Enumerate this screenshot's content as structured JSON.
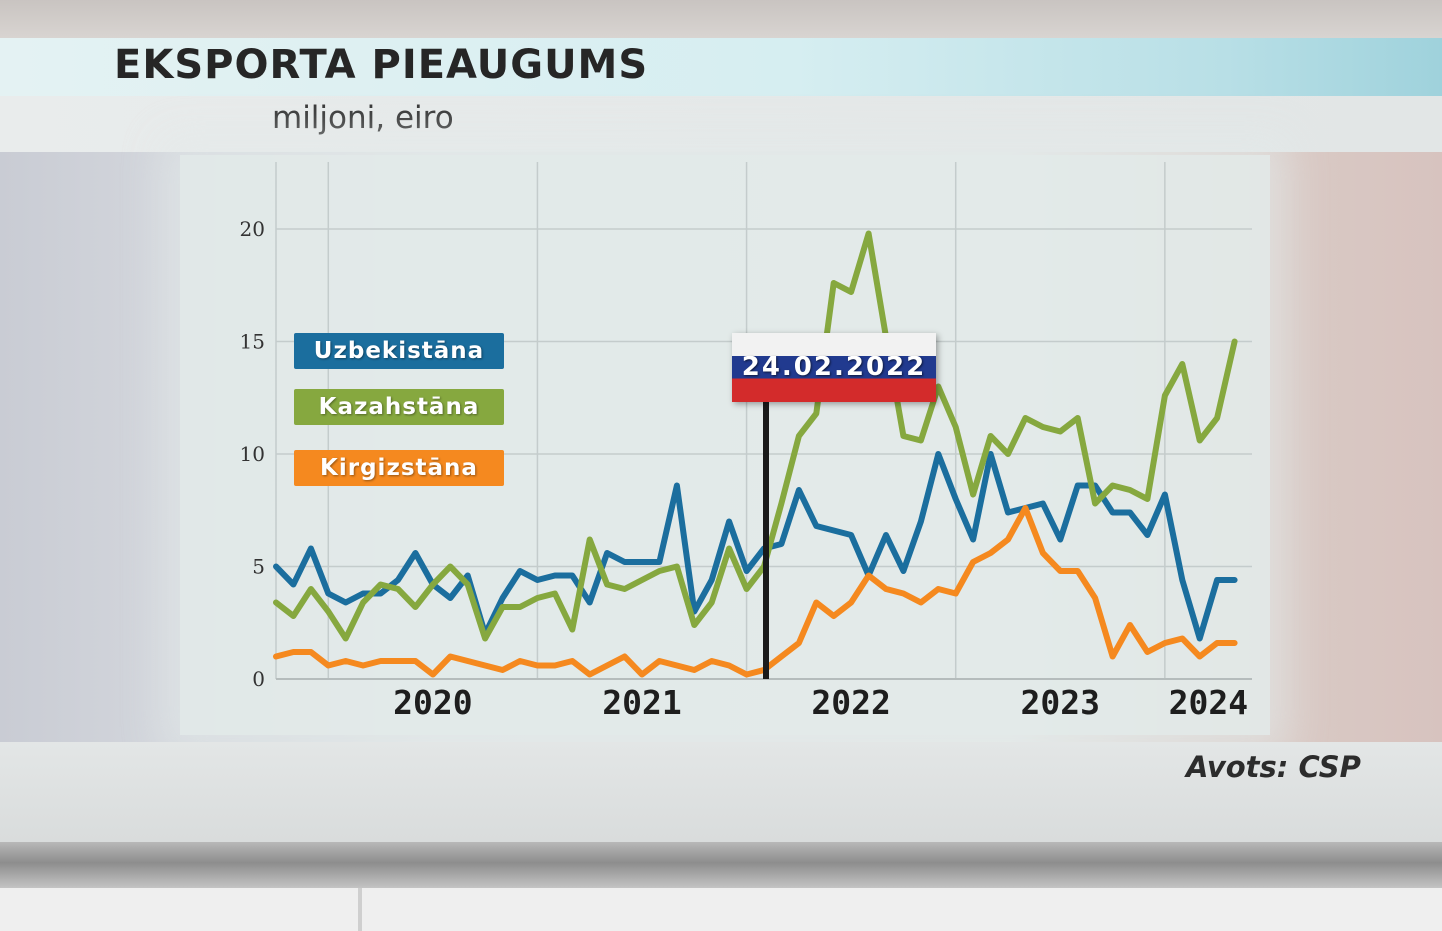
{
  "header": {
    "title": "EKSPORTA PIEAUGUMS",
    "subtitle": "miljoni, eiro"
  },
  "source": "Avots: CSP",
  "marker": {
    "label": "24.02.2022"
  },
  "colors": {
    "uzbekistan": "#1b6e9e",
    "kazakhstan": "#86a83f",
    "kyrgyzstan": "#f5891f"
  },
  "legend": [
    {
      "label": "Uzbekistāna",
      "color": "#1b6e9e"
    },
    {
      "label": "Kazahstāna",
      "color": "#86a83f"
    },
    {
      "label": "Kirgizstāna",
      "color": "#f5891f"
    }
  ],
  "chart_data": {
    "type": "line",
    "title": "EKSPORTA PIEAUGUMS",
    "ylabel": "miljoni, eiro",
    "ylim": [
      0,
      20
    ],
    "y_ticks": [
      "0",
      "5",
      "10",
      "15",
      "20"
    ],
    "x_tick_labels": [
      "2020",
      "2021",
      "2022",
      "2023",
      "2024"
    ],
    "grid": true,
    "legend_position": "left",
    "x_start": "2019-10",
    "x_end": "2024-06",
    "marker_date": "2022-02",
    "series": [
      {
        "name": "Uzbekistāna",
        "color": "#1b6e9e",
        "values": [
          5.0,
          4.2,
          5.8,
          3.8,
          3.4,
          3.8,
          3.8,
          4.4,
          5.6,
          4.2,
          3.6,
          4.6,
          2.0,
          3.6,
          4.8,
          4.4,
          4.6,
          4.6,
          3.4,
          5.6,
          5.2,
          5.2,
          5.2,
          8.6,
          3.0,
          4.4,
          7.0,
          4.8,
          5.8,
          6.0,
          8.4,
          6.8,
          6.6,
          6.4,
          4.6,
          6.4,
          4.8,
          7.0,
          10.0,
          8.0,
          6.2,
          10.0,
          7.4,
          7.6,
          7.8,
          6.2,
          8.6,
          8.6,
          7.4,
          7.4,
          6.4,
          8.2,
          4.4,
          1.8,
          4.4,
          4.4
        ]
      },
      {
        "name": "Kazahstāna",
        "color": "#86a83f",
        "values": [
          3.4,
          2.8,
          4.0,
          3.0,
          1.8,
          3.4,
          4.2,
          4.0,
          3.2,
          4.2,
          5.0,
          4.2,
          1.8,
          3.2,
          3.2,
          3.6,
          3.8,
          2.2,
          6.2,
          4.2,
          4.0,
          4.4,
          4.8,
          5.0,
          2.4,
          3.4,
          5.8,
          4.0,
          5.0,
          7.8,
          10.8,
          11.8,
          17.6,
          17.2,
          19.8,
          15.2,
          10.8,
          10.6,
          13.0,
          11.2,
          8.2,
          10.8,
          10.0,
          11.6,
          11.2,
          11.0,
          11.6,
          7.8,
          8.6,
          8.4,
          8.0,
          12.6,
          14.0,
          10.6,
          11.6,
          15.0
        ]
      },
      {
        "name": "Kirgizstāna",
        "color": "#f5891f",
        "values": [
          1.0,
          1.2,
          1.2,
          0.6,
          0.8,
          0.6,
          0.8,
          0.8,
          0.8,
          0.2,
          1.0,
          0.8,
          0.6,
          0.4,
          0.8,
          0.6,
          0.6,
          0.8,
          0.2,
          0.6,
          1.0,
          0.2,
          0.8,
          0.6,
          0.4,
          0.8,
          0.6,
          0.2,
          0.4,
          1.0,
          1.6,
          3.4,
          2.8,
          3.4,
          4.6,
          4.0,
          3.8,
          3.4,
          4.0,
          3.8,
          5.2,
          5.6,
          6.2,
          7.6,
          5.6,
          4.8,
          4.8,
          3.6,
          1.0,
          2.4,
          1.2,
          1.6,
          1.8,
          1.0,
          1.6,
          1.6
        ]
      }
    ]
  }
}
